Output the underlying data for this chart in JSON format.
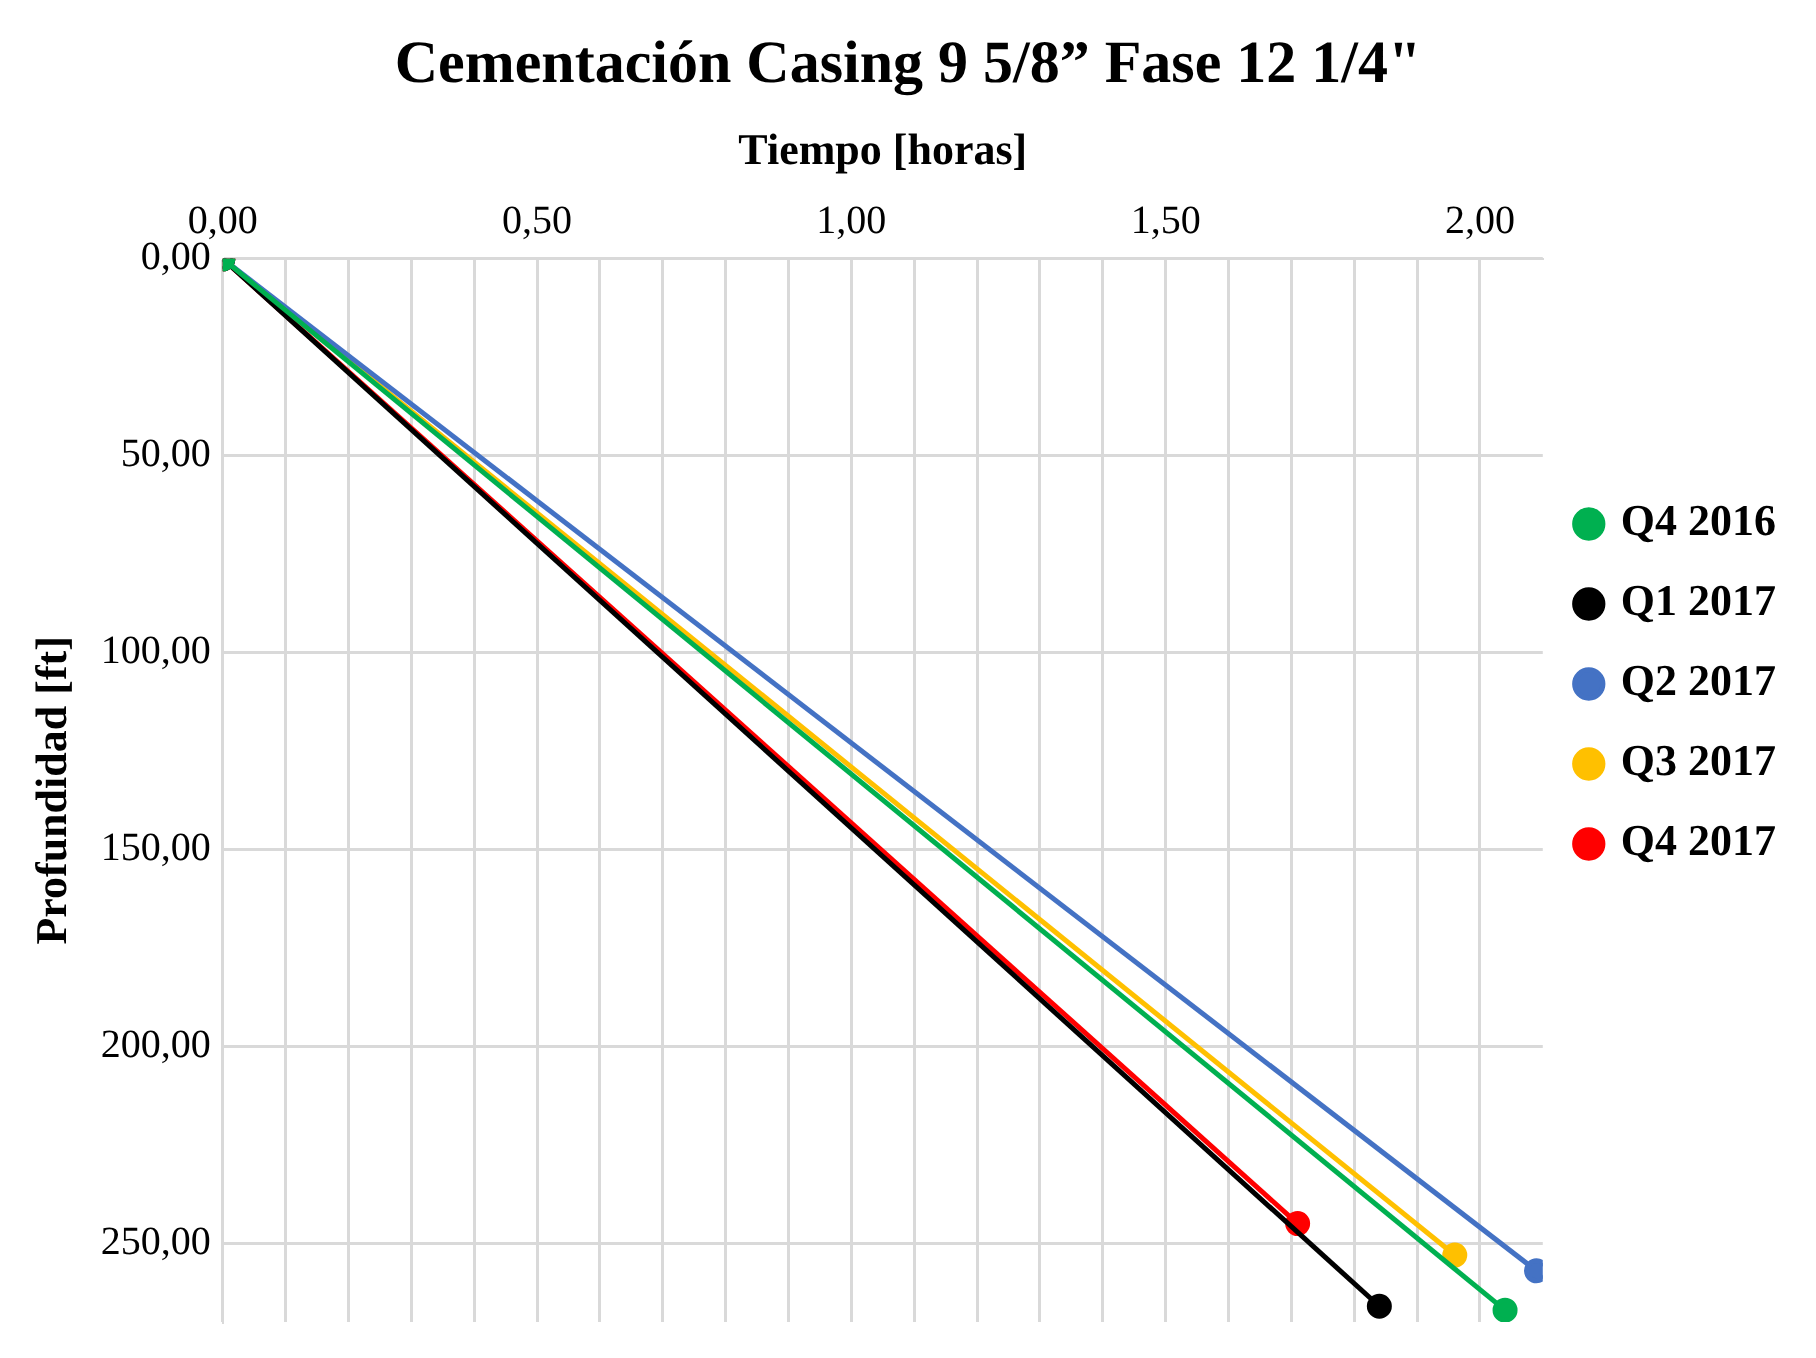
{
  "chart_data": {
    "type": "line",
    "title": "Cementación Casing 9 5/8” Fase 12 1/4\"",
    "xlabel": "Tiempo [horas]",
    "ylabel": "Profundidad [ft]",
    "xlim": [
      0,
      2.1
    ],
    "ylim": [
      270,
      0
    ],
    "xticks": [
      {
        "value": 0,
        "label": "0,00"
      },
      {
        "value": 0.1,
        "label": null
      },
      {
        "value": 0.2,
        "label": null
      },
      {
        "value": 0.3,
        "label": null
      },
      {
        "value": 0.4,
        "label": null
      },
      {
        "value": 0.5,
        "label": "0,50"
      },
      {
        "value": 0.6,
        "label": null
      },
      {
        "value": 0.7,
        "label": null
      },
      {
        "value": 0.8,
        "label": null
      },
      {
        "value": 0.9,
        "label": null
      },
      {
        "value": 1,
        "label": "1,00"
      },
      {
        "value": 1.1,
        "label": null
      },
      {
        "value": 1.2,
        "label": null
      },
      {
        "value": 1.3,
        "label": null
      },
      {
        "value": 1.4,
        "label": null
      },
      {
        "value": 1.5,
        "label": "1,50"
      },
      {
        "value": 1.6,
        "label": null
      },
      {
        "value": 1.7,
        "label": null
      },
      {
        "value": 1.8,
        "label": null
      },
      {
        "value": 1.9,
        "label": null
      },
      {
        "value": 2,
        "label": "2,00"
      }
    ],
    "yticks": [
      {
        "value": 0,
        "label": "0,00"
      },
      {
        "value": 50,
        "label": "50,00"
      },
      {
        "value": 100,
        "label": "100,00"
      },
      {
        "value": 150,
        "label": "150,00"
      },
      {
        "value": 200,
        "label": "200,00"
      },
      {
        "value": 250,
        "label": "250,00"
      }
    ],
    "grid": true,
    "legend": "right",
    "marker": "circle",
    "line_style": "solid",
    "series": [
      {
        "name": "Q4 2016",
        "color": "#00b050",
        "x": [
          0,
          2.04
        ],
        "values": [
          0,
          267
        ]
      },
      {
        "name": "Q1 2017",
        "color": "#000000",
        "x": [
          0,
          1.84
        ],
        "values": [
          0,
          266
        ]
      },
      {
        "name": "Q2 2017",
        "color": "#4472c4",
        "x": [
          0,
          2.09
        ],
        "values": [
          0,
          257
        ]
      },
      {
        "name": "Q3 2017",
        "color": "#ffc000",
        "x": [
          0,
          1.96
        ],
        "values": [
          0,
          253
        ]
      },
      {
        "name": "Q4 2017",
        "color": "#ff0000",
        "x": [
          0,
          1.71
        ],
        "values": [
          0,
          245
        ]
      }
    ]
  }
}
